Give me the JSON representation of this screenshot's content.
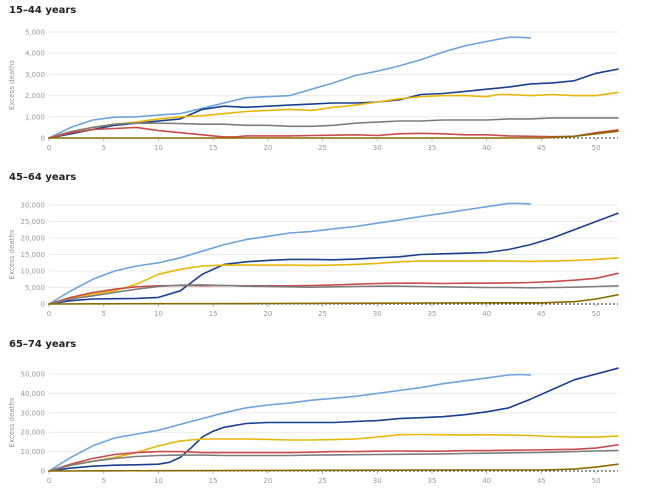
{
  "chart_data": [
    {
      "type": "line",
      "title": "15–44 years",
      "ylabel": "Excess deaths",
      "xlabel": "",
      "xlim": [
        0,
        52
      ],
      "ylim": [
        0,
        5000
      ],
      "x_ticks": [
        0,
        5,
        10,
        15,
        20,
        25,
        30,
        35,
        40,
        45,
        50
      ],
      "y_ticks": [
        0,
        1000,
        2000,
        3000,
        4000,
        5000
      ],
      "y_tick_labels": [
        "0",
        "1,000",
        "2,000",
        "3,000",
        "4,000",
        "5,000"
      ],
      "series": [
        {
          "color": "#6ea3db",
          "x": [
            0,
            2,
            4,
            6,
            8,
            10,
            12,
            14,
            16,
            18,
            20,
            22,
            24,
            26,
            28,
            30,
            32,
            34,
            36,
            38,
            40,
            42,
            43,
            44
          ],
          "y": [
            0,
            500,
            850,
            980,
            1000,
            1080,
            1150,
            1400,
            1650,
            1900,
            1950,
            2000,
            2300,
            2600,
            2950,
            3150,
            3400,
            3700,
            4050,
            4350,
            4550,
            4750,
            4750,
            4720
          ]
        },
        {
          "color": "#1b3f8e",
          "x": [
            0,
            2,
            4,
            6,
            8,
            10,
            12,
            14,
            16,
            18,
            20,
            22,
            24,
            26,
            28,
            30,
            32,
            34,
            36,
            38,
            40,
            42,
            44,
            46,
            48,
            50,
            52
          ],
          "y": [
            0,
            200,
            400,
            600,
            700,
            800,
            900,
            1350,
            1500,
            1450,
            1500,
            1550,
            1600,
            1650,
            1650,
            1700,
            1800,
            2050,
            2100,
            2200,
            2300,
            2400,
            2550,
            2600,
            2700,
            3050,
            3250
          ]
        },
        {
          "color": "#e8b70c",
          "x": [
            0,
            2,
            4,
            6,
            8,
            10,
            12,
            14,
            16,
            18,
            20,
            22,
            24,
            26,
            28,
            30,
            32,
            34,
            36,
            38,
            40,
            41,
            42,
            44,
            46,
            48,
            50,
            52
          ],
          "y": [
            0,
            300,
            500,
            650,
            750,
            900,
            1000,
            1050,
            1150,
            1250,
            1300,
            1350,
            1300,
            1450,
            1550,
            1700,
            1850,
            1950,
            2000,
            2000,
            1950,
            2050,
            2050,
            2000,
            2050,
            2000,
            2000,
            2150
          ]
        },
        {
          "color": "#7d7d7d",
          "x": [
            0,
            2,
            4,
            6,
            8,
            10,
            12,
            14,
            16,
            18,
            20,
            22,
            24,
            26,
            28,
            30,
            32,
            34,
            36,
            38,
            40,
            42,
            44,
            46,
            48,
            50,
            52
          ],
          "y": [
            0,
            300,
            500,
            650,
            700,
            700,
            680,
            650,
            650,
            600,
            600,
            550,
            550,
            600,
            700,
            750,
            800,
            800,
            850,
            850,
            850,
            900,
            900,
            950,
            950,
            950,
            950
          ]
        },
        {
          "color": "#c94c4c",
          "x": [
            0,
            2,
            4,
            6,
            8,
            10,
            12,
            14,
            16,
            17,
            18,
            20,
            22,
            24,
            26,
            28,
            30,
            32,
            34,
            36,
            38,
            40,
            42,
            44,
            46,
            48,
            50,
            52
          ],
          "y": [
            0,
            250,
            400,
            450,
            500,
            350,
            250,
            150,
            50,
            50,
            100,
            100,
            100,
            120,
            130,
            150,
            120,
            200,
            220,
            200,
            150,
            150,
            100,
            80,
            60,
            80,
            250,
            380
          ]
        },
        {
          "color": "#8a6a00",
          "x": [
            0,
            5,
            10,
            15,
            20,
            25,
            30,
            35,
            40,
            45,
            48,
            50,
            52
          ],
          "y": [
            0,
            0,
            0,
            0,
            0,
            0,
            0,
            0,
            0,
            0,
            80,
            200,
            320
          ]
        }
      ]
    },
    {
      "type": "line",
      "title": "45–64 years",
      "ylabel": "Excess deaths",
      "xlabel": "",
      "xlim": [
        0,
        52
      ],
      "ylim": [
        0,
        30000
      ],
      "x_ticks": [
        0,
        5,
        10,
        15,
        20,
        25,
        30,
        35,
        40,
        45,
        50
      ],
      "y_ticks": [
        0,
        5000,
        10000,
        15000,
        20000,
        25000,
        30000
      ],
      "y_tick_labels": [
        "0",
        "5,000",
        "10,000",
        "15,000",
        "20,000",
        "25,000",
        "30,000"
      ],
      "series": [
        {
          "color": "#6ea3db",
          "x": [
            0,
            2,
            4,
            6,
            8,
            10,
            12,
            14,
            16,
            18,
            20,
            22,
            24,
            26,
            28,
            30,
            32,
            34,
            36,
            38,
            40,
            42,
            43,
            44
          ],
          "y": [
            0,
            4000,
            7500,
            10000,
            11500,
            12500,
            14000,
            16000,
            18000,
            19500,
            20500,
            21500,
            22000,
            22800,
            23500,
            24500,
            25500,
            26500,
            27500,
            28500,
            29500,
            30500,
            30500,
            30300
          ]
        },
        {
          "color": "#1b3f8e",
          "x": [
            0,
            2,
            4,
            6,
            8,
            10,
            12,
            13,
            14,
            16,
            18,
            20,
            22,
            24,
            26,
            28,
            30,
            32,
            34,
            36,
            38,
            40,
            42,
            44,
            46,
            48,
            50,
            52
          ],
          "y": [
            0,
            1000,
            1500,
            1600,
            1700,
            2000,
            4000,
            6500,
            9000,
            12000,
            12800,
            13200,
            13500,
            13500,
            13400,
            13600,
            14000,
            14300,
            15000,
            15200,
            15400,
            15600,
            16500,
            18000,
            20000,
            22500,
            25000,
            27500
          ]
        },
        {
          "color": "#e8b70c",
          "x": [
            0,
            2,
            4,
            6,
            8,
            10,
            12,
            14,
            16,
            18,
            20,
            22,
            24,
            26,
            28,
            30,
            32,
            34,
            36,
            38,
            40,
            42,
            44,
            46,
            48,
            50,
            52
          ],
          "y": [
            0,
            2000,
            3000,
            4000,
            6000,
            9000,
            10500,
            11500,
            11800,
            11800,
            11800,
            11800,
            11700,
            11800,
            12000,
            12300,
            12800,
            13000,
            13000,
            13000,
            13100,
            13000,
            12900,
            13000,
            13200,
            13500,
            14000
          ]
        },
        {
          "color": "#c94c4c",
          "x": [
            0,
            2,
            4,
            6,
            8,
            10,
            12,
            14,
            16,
            18,
            20,
            22,
            24,
            26,
            28,
            30,
            32,
            34,
            36,
            38,
            40,
            42,
            44,
            46,
            48,
            50,
            52
          ],
          "y": [
            0,
            2000,
            3500,
            4500,
            5200,
            5500,
            5600,
            5500,
            5600,
            5500,
            5500,
            5500,
            5600,
            5800,
            6000,
            6200,
            6300,
            6300,
            6200,
            6300,
            6300,
            6400,
            6500,
            6800,
            7200,
            7800,
            9300
          ]
        },
        {
          "color": "#7d7d7d",
          "x": [
            0,
            2,
            4,
            6,
            8,
            10,
            12,
            14,
            16,
            18,
            20,
            22,
            24,
            26,
            28,
            30,
            32,
            34,
            36,
            38,
            40,
            42,
            44,
            46,
            48,
            50,
            52
          ],
          "y": [
            0,
            1500,
            2500,
            3500,
            4500,
            5300,
            5700,
            5800,
            5600,
            5400,
            5300,
            5200,
            5100,
            5200,
            5300,
            5400,
            5400,
            5300,
            5200,
            5100,
            5000,
            5000,
            4900,
            5000,
            5100,
            5300,
            5500
          ]
        },
        {
          "color": "#8a6a00",
          "x": [
            0,
            5,
            10,
            15,
            20,
            25,
            30,
            35,
            40,
            45,
            48,
            50,
            52
          ],
          "y": [
            0,
            50,
            80,
            100,
            150,
            200,
            250,
            300,
            350,
            350,
            700,
            1500,
            2800
          ]
        }
      ]
    },
    {
      "type": "line",
      "title": "65–74 years",
      "ylabel": "Excess deaths",
      "xlabel": "",
      "xlim": [
        0,
        52
      ],
      "ylim": [
        0,
        50000
      ],
      "x_ticks": [
        0,
        5,
        10,
        15,
        20,
        25,
        30,
        35,
        40,
        45,
        50
      ],
      "y_ticks": [
        0,
        10000,
        20000,
        30000,
        40000,
        50000
      ],
      "y_tick_labels": [
        "0",
        "10,000",
        "20,000",
        "30,000",
        "40,000",
        "50,000"
      ],
      "series": [
        {
          "color": "#6ea3db",
          "x": [
            0,
            2,
            4,
            6,
            8,
            10,
            12,
            14,
            16,
            18,
            20,
            22,
            24,
            26,
            28,
            30,
            32,
            34,
            36,
            38,
            40,
            42,
            43,
            44
          ],
          "y": [
            0,
            7000,
            13000,
            17000,
            19000,
            21000,
            24000,
            27000,
            30000,
            32500,
            34000,
            35000,
            36500,
            37500,
            38500,
            40000,
            41500,
            43000,
            45000,
            46500,
            48000,
            49500,
            49800,
            49500
          ]
        },
        {
          "color": "#1b3f8e",
          "x": [
            0,
            2,
            4,
            6,
            8,
            10,
            11,
            12,
            13,
            14,
            15,
            16,
            18,
            20,
            22,
            24,
            26,
            28,
            30,
            32,
            34,
            36,
            38,
            40,
            42,
            44,
            46,
            48,
            50,
            52
          ],
          "y": [
            0,
            1500,
            2500,
            3000,
            3200,
            3500,
            4500,
            7000,
            12000,
            17500,
            20500,
            22500,
            24500,
            25000,
            25000,
            25000,
            25000,
            25500,
            26000,
            27000,
            27500,
            28000,
            29000,
            30500,
            32500,
            37000,
            42000,
            47000,
            50000,
            53000
          ]
        },
        {
          "color": "#e8b70c",
          "x": [
            0,
            2,
            4,
            6,
            8,
            10,
            12,
            14,
            16,
            18,
            20,
            22,
            24,
            26,
            28,
            30,
            32,
            34,
            36,
            38,
            40,
            42,
            44,
            46,
            48,
            50,
            52
          ],
          "y": [
            0,
            3000,
            5000,
            7000,
            9500,
            13000,
            15500,
            16500,
            16500,
            16500,
            16300,
            16000,
            16000,
            16200,
            16500,
            17500,
            18700,
            18800,
            18700,
            18600,
            18700,
            18500,
            18300,
            17800,
            17500,
            17500,
            18000
          ]
        },
        {
          "color": "#c94c4c",
          "x": [
            0,
            2,
            4,
            6,
            8,
            10,
            12,
            14,
            16,
            18,
            20,
            22,
            24,
            26,
            28,
            30,
            32,
            34,
            36,
            38,
            40,
            42,
            44,
            46,
            48,
            50,
            52
          ],
          "y": [
            0,
            3500,
            6500,
            8500,
            9500,
            10000,
            10000,
            9500,
            9500,
            9500,
            9500,
            9500,
            9700,
            10000,
            10000,
            10200,
            10300,
            10200,
            10200,
            10500,
            10500,
            10700,
            10800,
            11000,
            11200,
            11800,
            13500
          ]
        },
        {
          "color": "#7d7d7d",
          "x": [
            0,
            2,
            4,
            6,
            8,
            10,
            12,
            14,
            16,
            18,
            20,
            22,
            24,
            26,
            28,
            30,
            32,
            34,
            36,
            38,
            40,
            42,
            44,
            46,
            48,
            50,
            52
          ],
          "y": [
            0,
            3000,
            5000,
            6500,
            7500,
            8000,
            8200,
            8200,
            8000,
            8000,
            8000,
            8000,
            8200,
            8300,
            8400,
            8500,
            8600,
            8700,
            8800,
            9000,
            9200,
            9400,
            9500,
            9700,
            10000,
            10300,
            10600
          ]
        },
        {
          "color": "#8a6a00",
          "x": [
            0,
            5,
            10,
            15,
            20,
            25,
            30,
            35,
            40,
            45,
            48,
            50,
            52
          ],
          "y": [
            0,
            100,
            150,
            200,
            300,
            350,
            400,
            450,
            500,
            500,
            1000,
            2000,
            3500
          ]
        }
      ]
    }
  ]
}
